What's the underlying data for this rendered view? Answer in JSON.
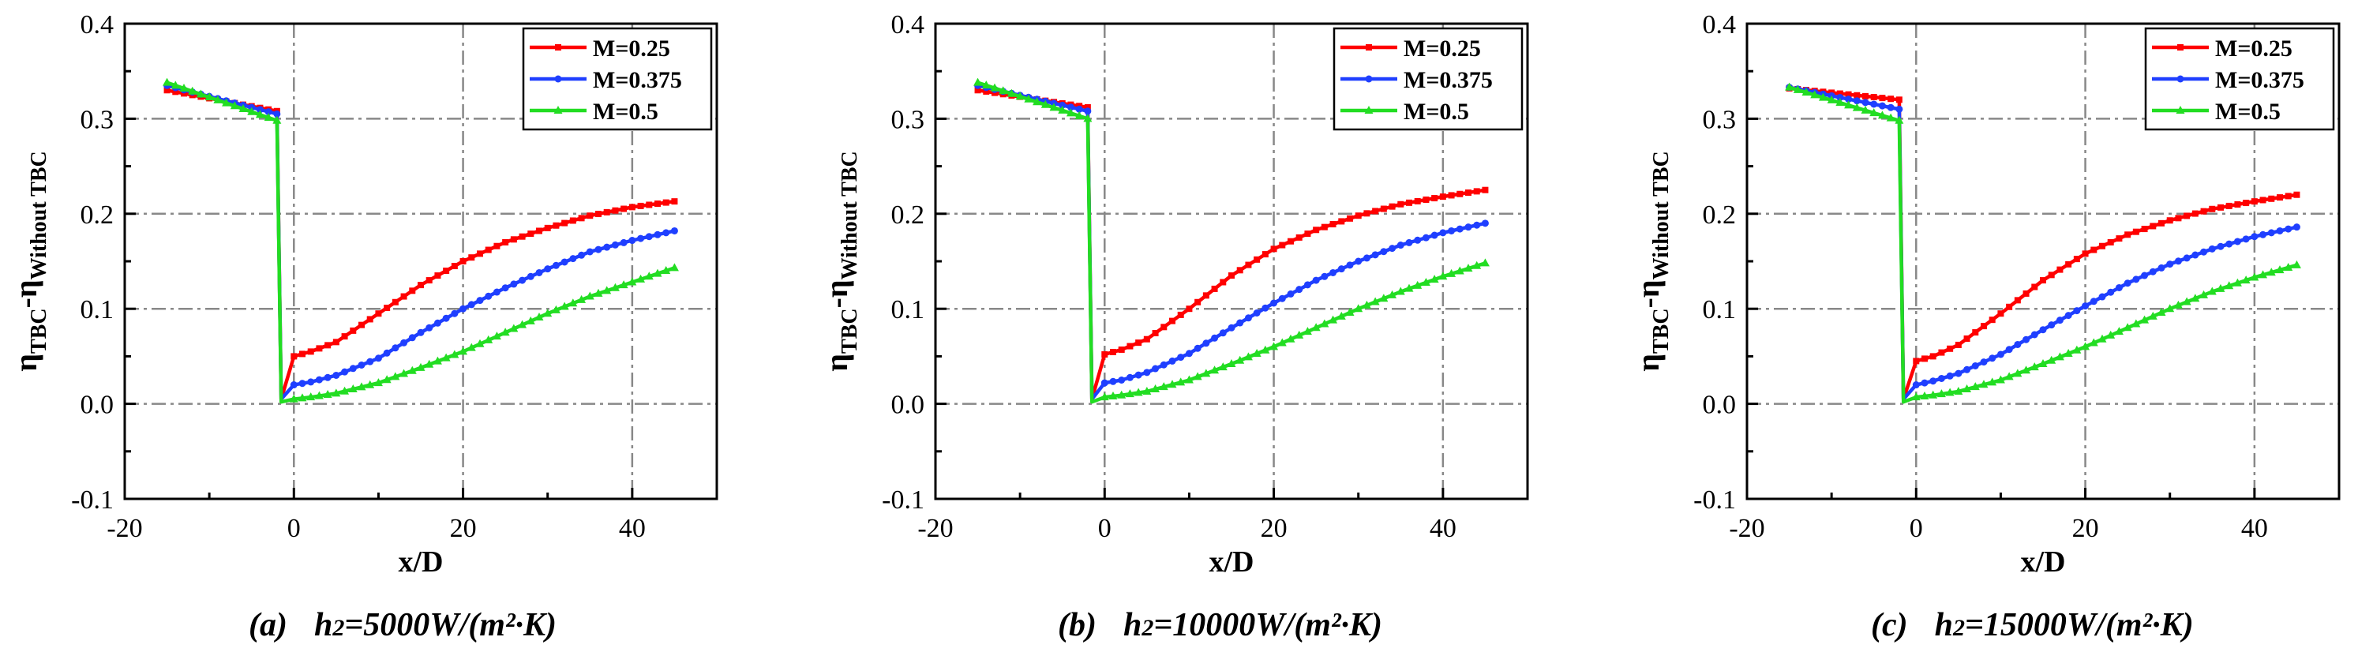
{
  "chart_data": [
    {
      "type": "line",
      "panel_label": "(a)",
      "caption_prefix": "h",
      "caption_sub": "2",
      "caption_value": "=5000W/(m²·K)",
      "xlabel": "x/D",
      "ylabel_main": "η",
      "ylabel_sub1": "TBC",
      "ylabel_mid": "-η",
      "ylabel_sub2": "Without TBC",
      "xlim": [
        -20,
        50
      ],
      "ylim": [
        -0.1,
        0.4
      ],
      "xticks": [
        -20,
        0,
        20,
        40
      ],
      "xtick_labels": [
        "-20",
        "0",
        "20",
        "40"
      ],
      "yticks": [
        -0.1,
        0.0,
        0.1,
        0.2,
        0.3,
        0.4
      ],
      "ytick_labels": [
        "-0.1",
        "0.0",
        "0.1",
        "0.2",
        "0.3",
        "0.4"
      ],
      "grid": true,
      "legend_position": "top-right",
      "series": [
        {
          "name": "M=0.25",
          "color": "#ff0000",
          "marker": "square",
          "upstream": [
            [
              -15,
              0.33
            ],
            [
              -2,
              0.308
            ]
          ],
          "drop": [
            -1.5,
            0.005
          ],
          "downstream": [
            [
              0,
              0.05
            ],
            [
              2,
              0.055
            ],
            [
              5,
              0.065
            ],
            [
              10,
              0.095
            ],
            [
              15,
              0.125
            ],
            [
              20,
              0.15
            ],
            [
              25,
              0.17
            ],
            [
              30,
              0.185
            ],
            [
              35,
              0.198
            ],
            [
              40,
              0.207
            ],
            [
              45,
              0.213
            ]
          ]
        },
        {
          "name": "M=0.375",
          "color": "#1f3fff",
          "marker": "circle",
          "upstream": [
            [
              -15,
              0.335
            ],
            [
              -2,
              0.305
            ]
          ],
          "drop": [
            -1.5,
            0.005
          ],
          "downstream": [
            [
              0,
              0.02
            ],
            [
              2,
              0.023
            ],
            [
              5,
              0.03
            ],
            [
              10,
              0.048
            ],
            [
              15,
              0.075
            ],
            [
              20,
              0.1
            ],
            [
              25,
              0.122
            ],
            [
              30,
              0.142
            ],
            [
              35,
              0.16
            ],
            [
              40,
              0.172
            ],
            [
              45,
              0.182
            ]
          ]
        },
        {
          "name": "M=0.5",
          "color": "#22dd22",
          "marker": "triangle",
          "upstream": [
            [
              -15,
              0.338
            ],
            [
              -2,
              0.298
            ]
          ],
          "drop": [
            -1.5,
            0.002
          ],
          "downstream": [
            [
              0,
              0.005
            ],
            [
              2,
              0.007
            ],
            [
              5,
              0.011
            ],
            [
              10,
              0.022
            ],
            [
              15,
              0.038
            ],
            [
              20,
              0.055
            ],
            [
              25,
              0.075
            ],
            [
              30,
              0.095
            ],
            [
              35,
              0.113
            ],
            [
              40,
              0.128
            ],
            [
              45,
              0.143
            ]
          ]
        }
      ]
    },
    {
      "type": "line",
      "panel_label": "(b)",
      "caption_prefix": "h",
      "caption_sub": "2",
      "caption_value": "=10000W/(m²·K)",
      "xlabel": "x/D",
      "ylabel_main": "η",
      "ylabel_sub1": "TBC",
      "ylabel_mid": "-η",
      "ylabel_sub2": "Without TBC",
      "xlim": [
        -20,
        50
      ],
      "ylim": [
        -0.1,
        0.4
      ],
      "xticks": [
        -20,
        0,
        20,
        40
      ],
      "xtick_labels": [
        "-20",
        "0",
        "20",
        "40"
      ],
      "yticks": [
        -0.1,
        0.0,
        0.1,
        0.2,
        0.3,
        0.4
      ],
      "ytick_labels": [
        "-0.1",
        "0.0",
        "0.1",
        "0.2",
        "0.3",
        "0.4"
      ],
      "grid": true,
      "legend_position": "top-right",
      "series": [
        {
          "name": "M=0.25",
          "color": "#ff0000",
          "marker": "square",
          "upstream": [
            [
              -15,
              0.33
            ],
            [
              -2,
              0.312
            ]
          ],
          "drop": [
            -1.5,
            0.005
          ],
          "downstream": [
            [
              0,
              0.052
            ],
            [
              2,
              0.057
            ],
            [
              5,
              0.068
            ],
            [
              10,
              0.1
            ],
            [
              15,
              0.135
            ],
            [
              20,
              0.163
            ],
            [
              25,
              0.183
            ],
            [
              30,
              0.198
            ],
            [
              35,
              0.21
            ],
            [
              40,
              0.218
            ],
            [
              45,
              0.225
            ]
          ]
        },
        {
          "name": "M=0.375",
          "color": "#1f3fff",
          "marker": "circle",
          "upstream": [
            [
              -15,
              0.335
            ],
            [
              -2,
              0.308
            ]
          ],
          "drop": [
            -1.5,
            0.005
          ],
          "downstream": [
            [
              0,
              0.022
            ],
            [
              2,
              0.025
            ],
            [
              5,
              0.033
            ],
            [
              10,
              0.053
            ],
            [
              15,
              0.08
            ],
            [
              20,
              0.106
            ],
            [
              25,
              0.13
            ],
            [
              30,
              0.15
            ],
            [
              35,
              0.167
            ],
            [
              40,
              0.18
            ],
            [
              45,
              0.19
            ]
          ]
        },
        {
          "name": "M=0.5",
          "color": "#22dd22",
          "marker": "triangle",
          "upstream": [
            [
              -15,
              0.338
            ],
            [
              -2,
              0.3
            ]
          ],
          "drop": [
            -1.5,
            0.002
          ],
          "downstream": [
            [
              0,
              0.007
            ],
            [
              2,
              0.009
            ],
            [
              5,
              0.013
            ],
            [
              10,
              0.025
            ],
            [
              15,
              0.042
            ],
            [
              20,
              0.06
            ],
            [
              25,
              0.08
            ],
            [
              30,
              0.1
            ],
            [
              35,
              0.118
            ],
            [
              40,
              0.134
            ],
            [
              45,
              0.148
            ]
          ]
        }
      ]
    },
    {
      "type": "line",
      "panel_label": "(c)",
      "caption_prefix": "h",
      "caption_sub": "2",
      "caption_value": "=15000W/(m²·K)",
      "xlabel": "x/D",
      "ylabel_main": "η",
      "ylabel_sub1": "TBC",
      "ylabel_mid": "-η",
      "ylabel_sub2": "Without TBC",
      "xlim": [
        -20,
        50
      ],
      "ylim": [
        -0.1,
        0.4
      ],
      "xticks": [
        -20,
        0,
        20,
        40
      ],
      "xtick_labels": [
        "-20",
        "0",
        "20",
        "40"
      ],
      "yticks": [
        -0.1,
        0.0,
        0.1,
        0.2,
        0.3,
        0.4
      ],
      "ytick_labels": [
        "-0.1",
        "0.0",
        "0.1",
        "0.2",
        "0.3",
        "0.4"
      ],
      "grid": true,
      "legend_position": "top-right",
      "series": [
        {
          "name": "M=0.25",
          "color": "#ff0000",
          "marker": "square",
          "upstream": [
            [
              -15,
              0.332
            ],
            [
              -2,
              0.32
            ]
          ],
          "drop": [
            -1.5,
            0.005
          ],
          "downstream": [
            [
              0,
              0.045
            ],
            [
              2,
              0.05
            ],
            [
              5,
              0.062
            ],
            [
              10,
              0.095
            ],
            [
              15,
              0.13
            ],
            [
              20,
              0.158
            ],
            [
              25,
              0.178
            ],
            [
              30,
              0.193
            ],
            [
              35,
              0.205
            ],
            [
              40,
              0.213
            ],
            [
              45,
              0.22
            ]
          ]
        },
        {
          "name": "M=0.375",
          "color": "#1f3fff",
          "marker": "circle",
          "upstream": [
            [
              -15,
              0.333
            ],
            [
              -2,
              0.31
            ]
          ],
          "drop": [
            -1.5,
            0.005
          ],
          "downstream": [
            [
              0,
              0.02
            ],
            [
              2,
              0.024
            ],
            [
              5,
              0.032
            ],
            [
              10,
              0.052
            ],
            [
              15,
              0.078
            ],
            [
              20,
              0.103
            ],
            [
              25,
              0.127
            ],
            [
              30,
              0.147
            ],
            [
              35,
              0.163
            ],
            [
              40,
              0.176
            ],
            [
              45,
              0.186
            ]
          ]
        },
        {
          "name": "M=0.5",
          "color": "#22dd22",
          "marker": "triangle",
          "upstream": [
            [
              -15,
              0.333
            ],
            [
              -2,
              0.298
            ]
          ],
          "drop": [
            -1.5,
            0.002
          ],
          "downstream": [
            [
              0,
              0.007
            ],
            [
              2,
              0.009
            ],
            [
              5,
              0.013
            ],
            [
              10,
              0.025
            ],
            [
              15,
              0.042
            ],
            [
              20,
              0.06
            ],
            [
              25,
              0.08
            ],
            [
              30,
              0.1
            ],
            [
              35,
              0.118
            ],
            [
              40,
              0.133
            ],
            [
              45,
              0.146
            ]
          ]
        }
      ]
    }
  ]
}
